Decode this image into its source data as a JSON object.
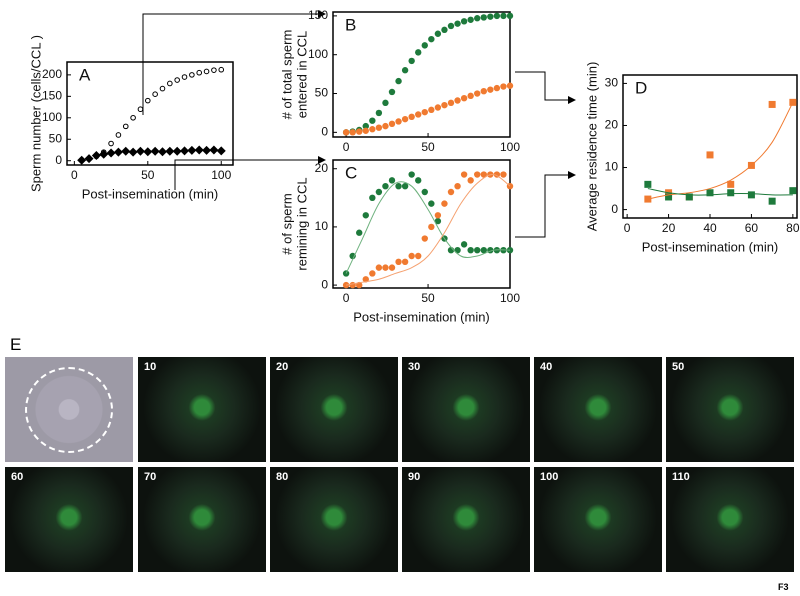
{
  "chart_data": [
    {
      "type": "scatter",
      "label": "A",
      "xlabel": "Post-insemination (min)",
      "ylabel": [
        "Sperm number (cells/CCL )"
      ],
      "xlim": [
        -5,
        108
      ],
      "ylim": [
        -10,
        230
      ],
      "xticks": [
        0,
        50,
        100
      ],
      "yticks": [
        0,
        50,
        100,
        150,
        200
      ],
      "series": [
        {
          "marker": "circle-open",
          "color": "#000000",
          "x": [
            5,
            10,
            15,
            20,
            25,
            30,
            35,
            40,
            45,
            50,
            55,
            60,
            65,
            70,
            75,
            80,
            85,
            90,
            95,
            100
          ],
          "values": [
            2,
            5,
            10,
            20,
            40,
            60,
            80,
            100,
            120,
            140,
            155,
            168,
            180,
            188,
            195,
            200,
            205,
            208,
            211,
            212
          ]
        },
        {
          "marker": "diamond",
          "color": "#000000",
          "x": [
            5,
            10,
            15,
            20,
            25,
            30,
            35,
            40,
            45,
            50,
            55,
            60,
            65,
            70,
            75,
            80,
            85,
            90,
            95,
            100
          ],
          "values": [
            1,
            5,
            12,
            15,
            18,
            20,
            22,
            20,
            22,
            21,
            22,
            21,
            22,
            22,
            23,
            24,
            25,
            24,
            25,
            23
          ]
        }
      ]
    },
    {
      "type": "scatter",
      "label": "B",
      "xlabel": null,
      "ylabel": [
        "# of total sperm",
        "entered in CCL"
      ],
      "xlim": [
        -8,
        100
      ],
      "ylim": [
        -6,
        155
      ],
      "xticks": [
        0,
        50,
        100
      ],
      "yticks": [
        0,
        50,
        100,
        150
      ],
      "series": [
        {
          "marker": "circle",
          "color": "#1e7a3c",
          "x": [
            0,
            4,
            8,
            12,
            16,
            20,
            24,
            28,
            32,
            36,
            40,
            44,
            48,
            52,
            56,
            60,
            64,
            68,
            72,
            76,
            80,
            84,
            88,
            92,
            96,
            100
          ],
          "values": [
            0,
            1,
            3,
            8,
            15,
            25,
            38,
            52,
            66,
            80,
            92,
            103,
            112,
            120,
            127,
            132,
            137,
            140,
            143,
            145,
            147,
            148,
            149,
            150,
            150,
            150
          ]
        },
        {
          "marker": "circle",
          "color": "#f07a30",
          "x": [
            0,
            4,
            8,
            12,
            16,
            20,
            24,
            28,
            32,
            36,
            40,
            44,
            48,
            52,
            56,
            60,
            64,
            68,
            72,
            76,
            80,
            84,
            88,
            92,
            96,
            100
          ],
          "values": [
            0,
            0,
            1,
            2,
            4,
            6,
            8,
            11,
            14,
            17,
            20,
            23,
            26,
            29,
            32,
            35,
            38,
            41,
            44,
            47,
            50,
            53,
            55,
            57,
            59,
            60
          ]
        }
      ]
    },
    {
      "type": "scatter",
      "label": "C",
      "xlabel": "Post-insemination (min)",
      "ylabel": [
        "# of sperm",
        "remining in CCL"
      ],
      "xlim": [
        -8,
        100
      ],
      "ylim": [
        -0.5,
        21.5
      ],
      "xticks": [
        0,
        50,
        100
      ],
      "yticks": [
        0,
        10,
        20
      ],
      "series": [
        {
          "marker": "circle",
          "color": "#1e7a3c",
          "x": [
            0,
            4,
            8,
            12,
            16,
            20,
            24,
            28,
            32,
            36,
            40,
            44,
            48,
            52,
            56,
            60,
            64,
            68,
            72,
            76,
            80,
            84,
            88,
            92,
            96,
            100
          ],
          "values": [
            2,
            5,
            9,
            12,
            15,
            16,
            17,
            18,
            17,
            17,
            19,
            18,
            16,
            14,
            11,
            8,
            6,
            6,
            7,
            6,
            6,
            6,
            6,
            6,
            6,
            6
          ]
        },
        {
          "marker": "circle",
          "color": "#f07a30",
          "x": [
            0,
            4,
            8,
            12,
            16,
            20,
            24,
            28,
            32,
            36,
            40,
            44,
            48,
            52,
            56,
            60,
            64,
            68,
            72,
            76,
            80,
            84,
            88,
            92,
            96,
            100
          ],
          "values": [
            0,
            0,
            0,
            1,
            2,
            3,
            3,
            3,
            4,
            4,
            5,
            5,
            8,
            10,
            12,
            14,
            16,
            17,
            19,
            18,
            19,
            19,
            19,
            19,
            19,
            17
          ]
        },
        {
          "marker": "line",
          "color": "#6fb27f",
          "x": [
            0,
            10,
            20,
            30,
            40,
            50,
            60,
            70,
            80,
            90,
            100
          ],
          "values": [
            2,
            8,
            14,
            17.5,
            17,
            13,
            8,
            5,
            5,
            6,
            6
          ]
        },
        {
          "marker": "line",
          "color": "#f5a170",
          "x": [
            0,
            10,
            20,
            30,
            40,
            50,
            60,
            70,
            80,
            90,
            100
          ],
          "values": [
            0,
            0.5,
            1,
            2,
            3,
            5,
            9,
            14,
            17.5,
            19,
            17
          ]
        }
      ]
    },
    {
      "type": "scatter",
      "label": "D",
      "xlabel": "Post-insemination (min)",
      "ylabel": [
        "Average residence time (min)"
      ],
      "xlim": [
        -2,
        82
      ],
      "ylim": [
        -2,
        32
      ],
      "xticks": [
        0,
        20,
        40,
        60,
        80
      ],
      "yticks": [
        0,
        10,
        20,
        30
      ],
      "series": [
        {
          "marker": "square",
          "color": "#f07a30",
          "x": [
            10,
            20,
            30,
            40,
            50,
            60,
            70,
            80
          ],
          "values": [
            2.5,
            4,
            3,
            13,
            6,
            10.5,
            25,
            25.5
          ]
        },
        {
          "marker": "square",
          "color": "#1e7a3c",
          "x": [
            10,
            20,
            30,
            40,
            50,
            60,
            70,
            80
          ],
          "values": [
            6,
            3,
            3,
            4,
            4,
            3.5,
            2,
            4.5
          ]
        },
        {
          "marker": "line",
          "color": "#f07a30",
          "x": [
            10,
            20,
            30,
            40,
            50,
            60,
            70,
            80
          ],
          "values": [
            2.5,
            3.5,
            4,
            5,
            7,
            10.5,
            16,
            25.5
          ]
        },
        {
          "marker": "line",
          "color": "#1e7a3c",
          "x": [
            10,
            20,
            30,
            40,
            50,
            60,
            70,
            80
          ],
          "values": [
            5,
            4,
            3.5,
            3.5,
            3.8,
            3.8,
            3.5,
            3.5
          ]
        }
      ]
    }
  ],
  "panel_e": {
    "label": "E",
    "tiles": [
      "10",
      "20",
      "30",
      "40",
      "50",
      "60",
      "70",
      "80",
      "90",
      "100",
      "110"
    ]
  },
  "footer": "F3"
}
